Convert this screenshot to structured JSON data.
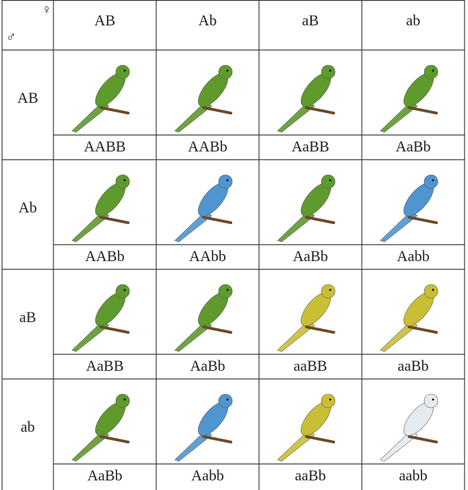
{
  "header": {
    "female": "♀",
    "male": "♂"
  },
  "table": {
    "columns": [
      "AB",
      "Ab",
      "aB",
      "ab"
    ],
    "rows": [
      {
        "label": "AB",
        "genotypes": [
          "AABB",
          "AABb",
          "AaBB",
          "AaBb"
        ],
        "colors": [
          "#5f9a2c",
          "#5f9a2c",
          "#5f9a2c",
          "#5f9a2c"
        ]
      },
      {
        "label": "Ab",
        "genotypes": [
          "AABb",
          "AAbb",
          "AaBb",
          "Aabb"
        ],
        "colors": [
          "#5f9a2c",
          "#4f95d0",
          "#5f9a2c",
          "#4f95d0"
        ]
      },
      {
        "label": "aB",
        "genotypes": [
          "AaBB",
          "AaBb",
          "aaBB",
          "aaBb"
        ],
        "colors": [
          "#5f9a2c",
          "#5f9a2c",
          "#c9bf35",
          "#c9bf35"
        ]
      },
      {
        "label": "ab",
        "genotypes": [
          "AaBb",
          "Aabb",
          "aaBb",
          "aabb"
        ],
        "colors": [
          "#5f9a2c",
          "#4f95d0",
          "#c9bf35",
          "#e4eaee"
        ]
      }
    ]
  }
}
